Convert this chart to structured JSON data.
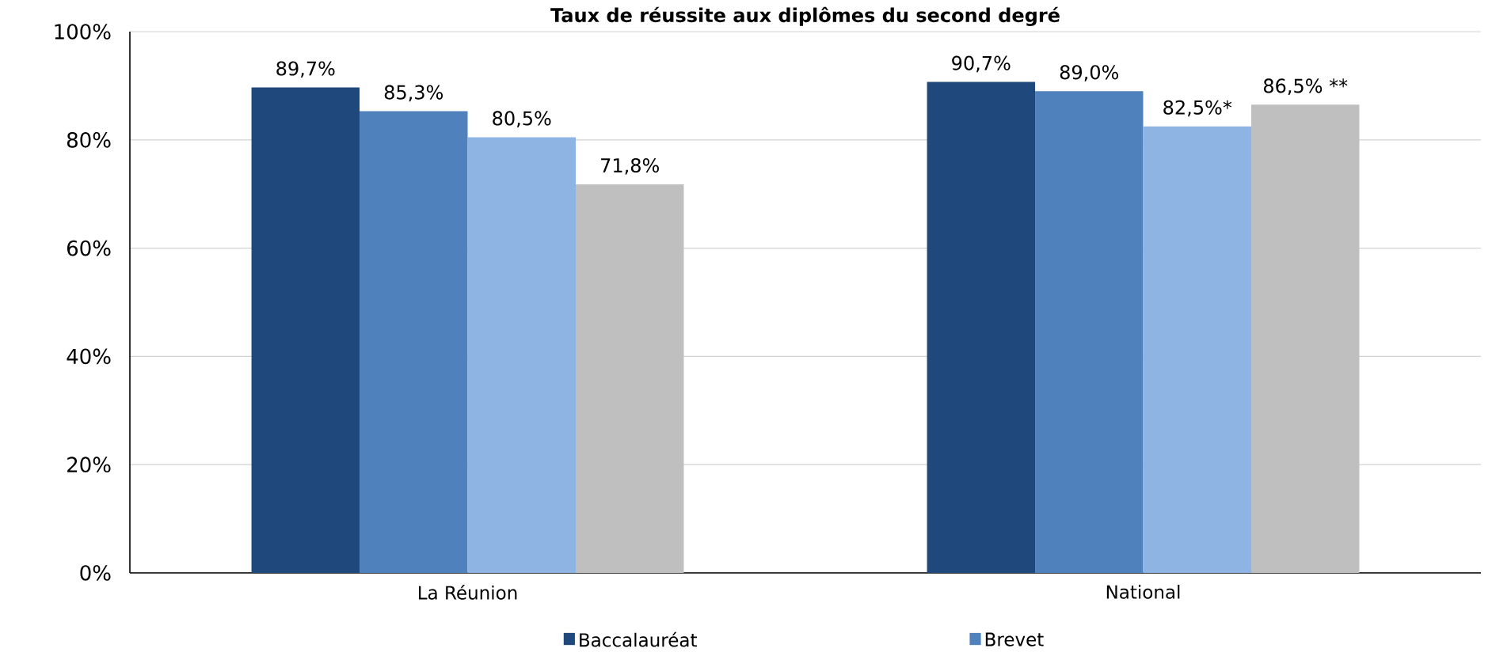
{
  "chart_data": {
    "type": "bar",
    "title": "Taux de réussite aux diplômes du second degré",
    "categories": [
      "La Réunion",
      "National"
    ],
    "series": [
      {
        "name": "Baccalauréat",
        "color": "#1f497d",
        "values": [
          89.7,
          90.7
        ],
        "value_labels": [
          "89,7%",
          "90,7%"
        ]
      },
      {
        "name": "Brevet",
        "color": "#4f81bd",
        "values": [
          85.3,
          89.0
        ],
        "value_labels": [
          "85,3%",
          "89,0%"
        ]
      },
      {
        "color": "#8eb4e3",
        "values": [
          80.5,
          82.5
        ],
        "value_labels": [
          "80,5%",
          "82,5%*"
        ]
      },
      {
        "color": "#bfbfbf",
        "values": [
          71.8,
          86.5
        ],
        "value_labels": [
          "71,8%",
          "86,5% **"
        ]
      }
    ],
    "ylim": [
      0,
      100
    ],
    "yticks": [
      {
        "value": 0,
        "label": "0%"
      },
      {
        "value": 20,
        "label": "20%"
      },
      {
        "value": 40,
        "label": "40%"
      },
      {
        "value": 60,
        "label": "60%"
      },
      {
        "value": 80,
        "label": "80%"
      },
      {
        "value": 100,
        "label": "100%"
      }
    ],
    "grid": "y",
    "legend": "bottom"
  }
}
